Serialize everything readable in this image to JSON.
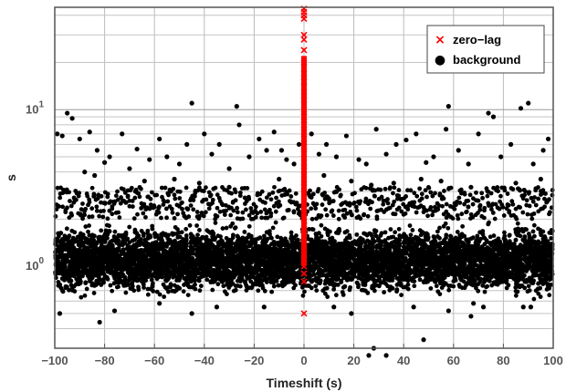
{
  "chart_data": {
    "type": "scatter",
    "title": "",
    "xlabel": "Timeshift (s)",
    "ylabel": "s",
    "xlim": [
      -100,
      100
    ],
    "ylim": [
      0.3,
      45
    ],
    "yscale": "log",
    "grid": true,
    "legend_position": "top-right",
    "x_ticks": [
      {
        "value": -100,
        "label": "−100"
      },
      {
        "value": -80,
        "label": "−80"
      },
      {
        "value": -60,
        "label": "−60"
      },
      {
        "value": -40,
        "label": "−40"
      },
      {
        "value": -20,
        "label": "−20"
      },
      {
        "value": 0,
        "label": "0"
      },
      {
        "value": 20,
        "label": "20"
      },
      {
        "value": 40,
        "label": "40"
      },
      {
        "value": 60,
        "label": "60"
      },
      {
        "value": 80,
        "label": "80"
      },
      {
        "value": 100,
        "label": "100"
      }
    ],
    "y_ticks": [
      {
        "value": 1,
        "base": "10",
        "exp": "0"
      },
      {
        "value": 10,
        "base": "10",
        "exp": "1"
      }
    ],
    "series": [
      {
        "name": "zero−lag",
        "marker": "x",
        "color": "#ff0000",
        "x": [
          0,
          0,
          0,
          0,
          0,
          0,
          0,
          0,
          0,
          0,
          0,
          0,
          0,
          0,
          0,
          0,
          0,
          0,
          0,
          0,
          0,
          0,
          0,
          0,
          0,
          0,
          0,
          0,
          0,
          0,
          0,
          0,
          0,
          0,
          0,
          0,
          0
        ],
        "y": [
          44,
          42,
          40,
          38,
          30,
          28,
          24,
          20,
          17,
          15,
          13,
          11.5,
          10,
          9,
          8,
          7.2,
          6.5,
          5.8,
          5.2,
          4.6,
          4.1,
          3.6,
          3.2,
          2.9,
          2.6,
          2.3,
          2.05,
          1.85,
          1.65,
          1.5,
          1.35,
          1.2,
          1.1,
          1.0,
          0.9,
          0.8,
          0.5
        ]
      },
      {
        "name": "background",
        "marker": "dot",
        "color": "#000000",
        "x": [
          -95,
          -93,
          -99,
          -97,
          -90,
          -86,
          -83,
          -80,
          -78,
          -73,
          -70,
          -67,
          -62,
          -58,
          -55,
          -50,
          -47,
          -45,
          -40,
          -37,
          -34,
          -30,
          -27,
          -26,
          -22,
          -18,
          -15,
          -12,
          -9,
          -7,
          -4,
          -2,
          3,
          6,
          9,
          13,
          17,
          22,
          25,
          29,
          33,
          37,
          41,
          45,
          49,
          52,
          57,
          58,
          62,
          66,
          70,
          74,
          76,
          79,
          83,
          87,
          90,
          92,
          96,
          98,
          -88,
          -84,
          -64,
          -52,
          -42,
          -30,
          -10,
          8,
          19,
          27,
          36,
          47,
          55,
          67,
          85,
          95,
          -82,
          -45,
          19,
          26,
          28,
          33,
          48,
          58,
          67,
          72,
          88,
          -98,
          -76,
          -58,
          -35,
          -16,
          12,
          44,
          68,
          91
        ],
        "y": [
          9.5,
          8.8,
          7.0,
          6.8,
          6.5,
          7.2,
          5.5,
          4.6,
          5.0,
          7.0,
          4.2,
          5.6,
          4.8,
          6.5,
          5.0,
          4.5,
          6.0,
          11.0,
          7.0,
          5.2,
          6.0,
          4.2,
          10.5,
          8.0,
          5.0,
          6.5,
          5.5,
          7.2,
          5.5,
          4.8,
          4.5,
          6.0,
          7.0,
          5.2,
          6.0,
          5.0,
          6.8,
          4.8,
          4.5,
          7.5,
          5.2,
          6.0,
          6.4,
          7.0,
          4.6,
          5.0,
          7.5,
          10.5,
          5.5,
          4.5,
          7.0,
          9.5,
          9.0,
          5.0,
          6.0,
          10.2,
          11.0,
          4.5,
          5.5,
          6.5,
          4.0,
          3.8,
          3.5,
          3.6,
          3.4,
          3.2,
          3.6,
          3.8,
          3.5,
          3.3,
          3.4,
          3.6,
          3.5,
          3.2,
          3.4,
          3.6,
          0.44,
          0.5,
          0.5,
          0.27,
          0.3,
          0.27,
          0.34,
          0.52,
          0.48,
          0.55,
          0.55,
          0.5,
          0.52,
          0.58,
          0.55,
          0.55,
          0.55,
          0.55,
          0.58,
          0.55
        ]
      }
    ],
    "background_band": {
      "x_range": [
        -100,
        100
      ],
      "y_range": [
        0.6,
        2.0
      ],
      "note": "dense band of background points"
    }
  },
  "legend": {
    "entries": [
      {
        "label": "zero−lag",
        "symbol": "×",
        "color": "#ff0000"
      },
      {
        "label": "background",
        "symbol": "●",
        "color": "#000000"
      }
    ]
  }
}
